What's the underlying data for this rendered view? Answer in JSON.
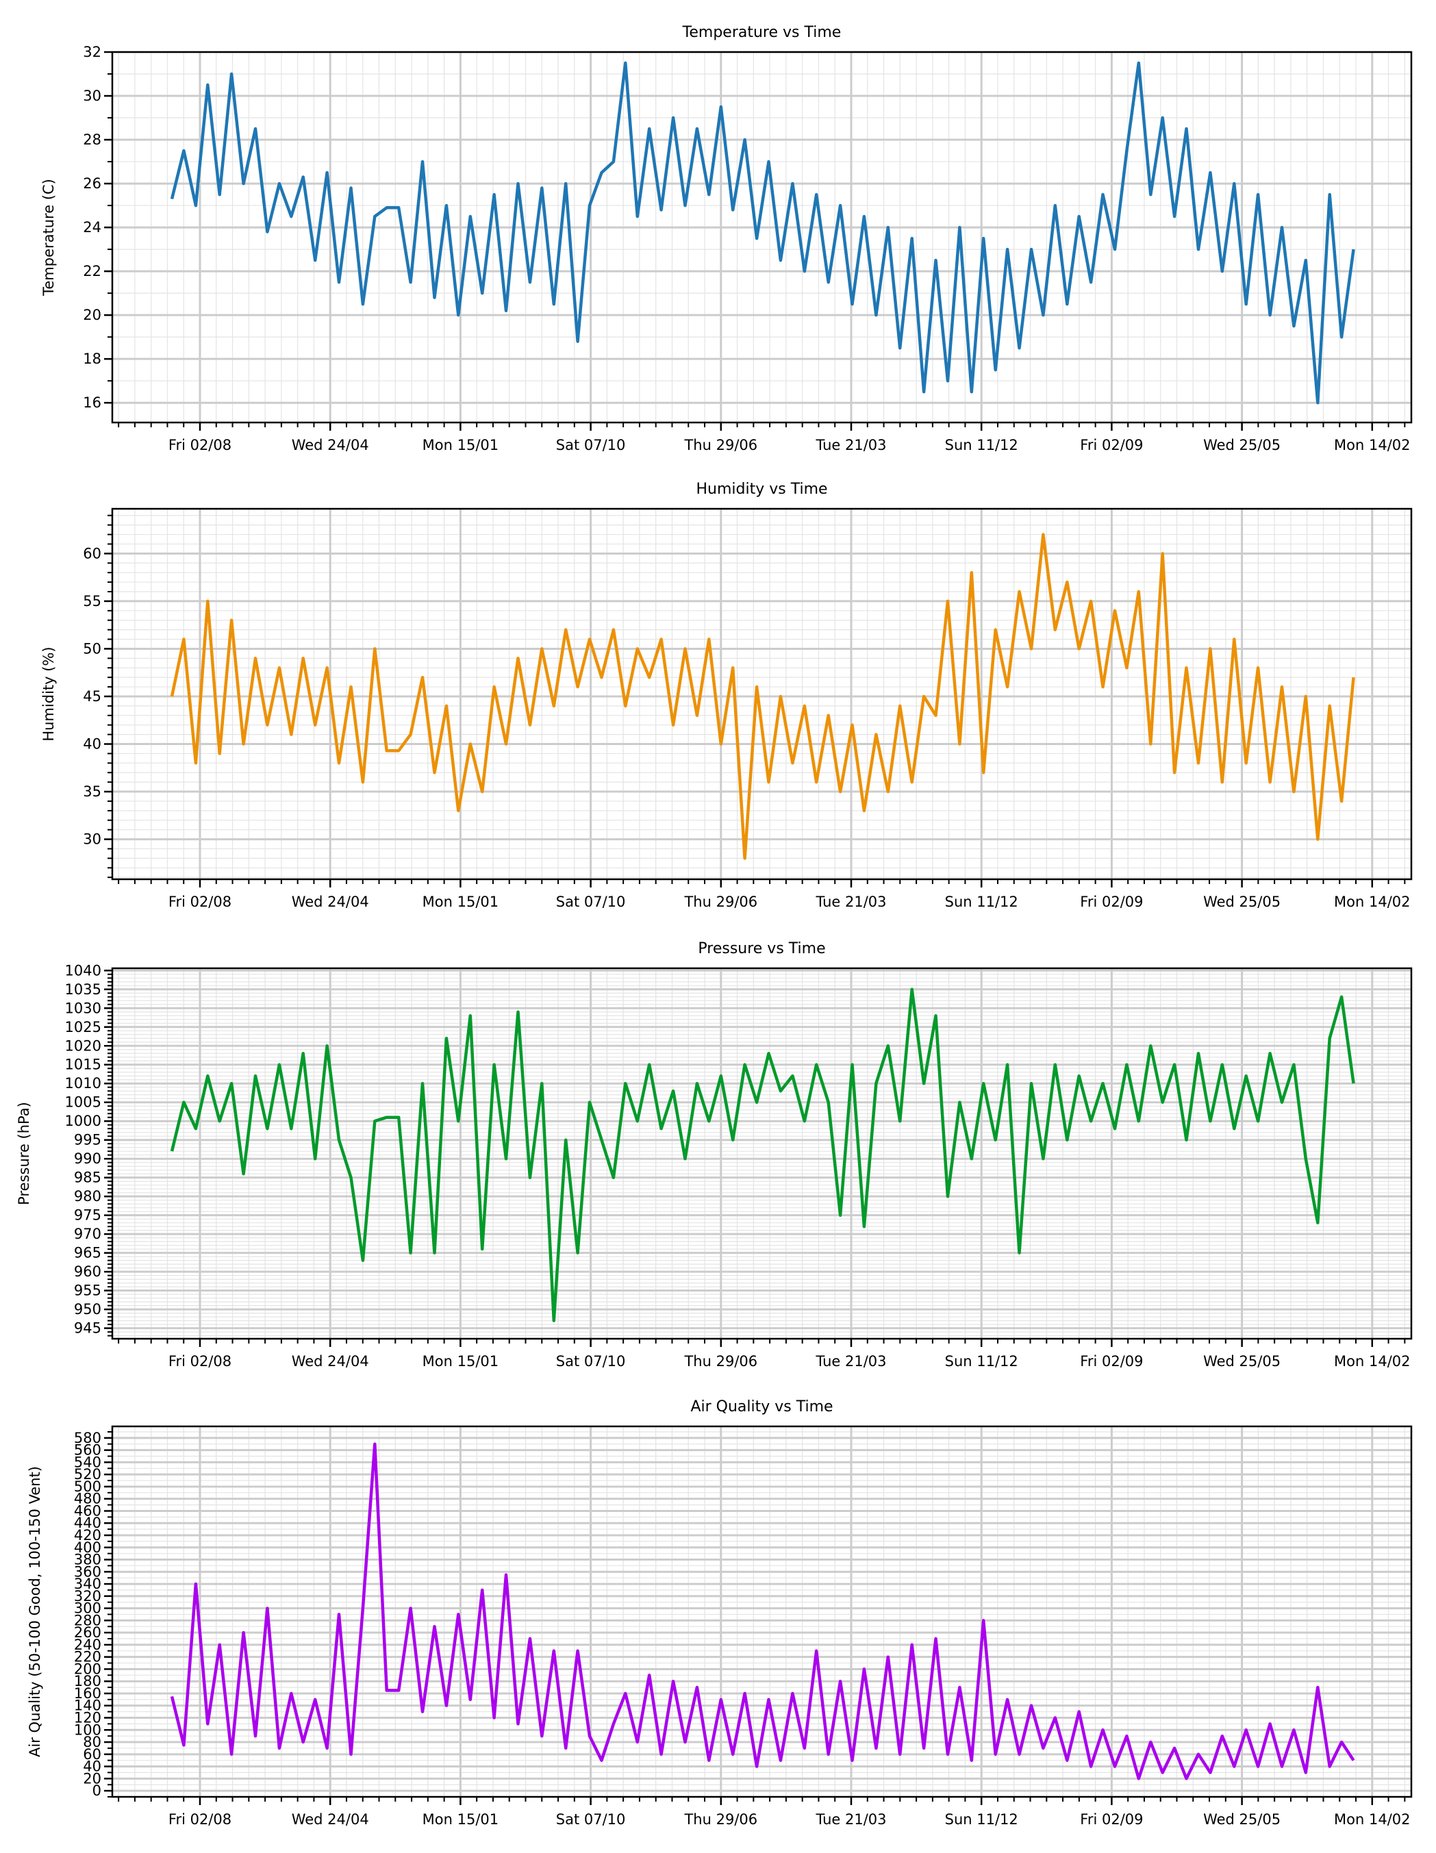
{
  "chart_data": [
    {
      "type": "line",
      "title": "Temperature vs Time",
      "ylabel": "Temperature (C)",
      "xlabel": "",
      "ylim": [
        15.1,
        32
      ],
      "yticks": [
        16,
        18,
        20,
        22,
        24,
        26,
        28,
        30,
        32
      ],
      "yminor": 1,
      "grid": true,
      "color": "#1f77b4",
      "x_tick_labels": [
        "Fri 02/08",
        "Wed 24/04",
        "Mon 15/01",
        "Sat 07/10",
        "Thu 29/06",
        "Tue 21/03",
        "Sun 11/12",
        "Fri 02/09",
        "Wed 25/05",
        "Mon 14/02"
      ],
      "values": [
        25.3,
        27.5,
        25.0,
        30.5,
        25.5,
        31.0,
        26.0,
        28.5,
        23.8,
        26.0,
        24.5,
        26.3,
        22.5,
        26.5,
        21.5,
        25.8,
        20.5,
        24.5,
        24.9,
        24.9,
        21.5,
        27.0,
        20.8,
        25.0,
        20.0,
        24.5,
        21.0,
        25.5,
        20.2,
        26.0,
        21.5,
        25.8,
        20.5,
        26.0,
        18.8,
        25.0,
        26.5,
        27.0,
        31.5,
        24.5,
        28.5,
        24.8,
        29.0,
        25.0,
        28.5,
        25.5,
        29.5,
        24.8,
        28.0,
        23.5,
        27.0,
        22.5,
        26.0,
        22.0,
        25.5,
        21.5,
        25.0,
        20.5,
        24.5,
        20.0,
        24.0,
        18.5,
        23.5,
        16.5,
        22.5,
        17.0,
        24.0,
        16.5,
        23.5,
        17.5,
        23.0,
        18.5,
        23.0,
        20.0,
        25.0,
        20.5,
        24.5,
        21.5,
        25.5,
        23.0,
        27.5,
        31.5,
        25.5,
        29.0,
        24.5,
        28.5,
        23.0,
        26.5,
        22.0,
        26.0,
        20.5,
        25.5,
        20.0,
        24.0,
        19.5,
        22.5,
        16.0,
        25.5,
        19.0,
        23.0
      ]
    },
    {
      "type": "line",
      "title": "Humidity vs Time",
      "ylabel": "Humidity (%)",
      "xlabel": "",
      "ylim": [
        25.8,
        64.7
      ],
      "yticks": [
        30,
        35,
        40,
        45,
        50,
        55,
        60
      ],
      "yminor": 1,
      "grid": true,
      "color": "#ec9106",
      "x_tick_labels": [
        "Fri 02/08",
        "Wed 24/04",
        "Mon 15/01",
        "Sat 07/10",
        "Thu 29/06",
        "Tue 21/03",
        "Sun 11/12",
        "Fri 02/09",
        "Wed 25/05",
        "Mon 14/02"
      ],
      "values": [
        45,
        51,
        38,
        55,
        39,
        53,
        40,
        49,
        42,
        48,
        41,
        49,
        42,
        48,
        38,
        46,
        36,
        50,
        39.3,
        39.3,
        41,
        47,
        37,
        44,
        33,
        40,
        35,
        46,
        40,
        49,
        42,
        50,
        44,
        52,
        46,
        51,
        47,
        52,
        44,
        50,
        47,
        51,
        42,
        50,
        43,
        51,
        40,
        48,
        28,
        46,
        36,
        45,
        38,
        44,
        36,
        43,
        35,
        42,
        33,
        41,
        35,
        44,
        36,
        45,
        43,
        55,
        40,
        58,
        37,
        52,
        46,
        56,
        50,
        62,
        52,
        57,
        50,
        55,
        46,
        54,
        48,
        56,
        40,
        60,
        37,
        48,
        38,
        50,
        36,
        51,
        38,
        48,
        36,
        46,
        35,
        45,
        30,
        44,
        34,
        47
      ]
    },
    {
      "type": "line",
      "title": "Pressure vs Time",
      "ylabel": "Pressure (hPa)",
      "xlabel": "",
      "ylim": [
        942.2,
        1040.6
      ],
      "yticks": [
        945,
        950,
        955,
        960,
        965,
        970,
        975,
        980,
        985,
        990,
        995,
        1000,
        1005,
        1010,
        1015,
        1020,
        1025,
        1030,
        1035,
        1040
      ],
      "yminor": 1,
      "grid": true,
      "color": "#029a2b",
      "x_tick_labels": [
        "Fri 02/08",
        "Wed 24/04",
        "Mon 15/01",
        "Sat 07/10",
        "Thu 29/06",
        "Tue 21/03",
        "Sun 11/12",
        "Fri 02/09",
        "Wed 25/05",
        "Mon 14/02"
      ],
      "values": [
        992,
        1005,
        998,
        1012,
        1000,
        1010,
        986,
        1012,
        998,
        1015,
        998,
        1018,
        990,
        1020,
        995,
        985,
        963,
        1000,
        1001,
        1001,
        965,
        1010,
        965,
        1022,
        1000,
        1028,
        966,
        1015,
        990,
        1029,
        985,
        1010,
        947,
        995,
        965,
        1005,
        995,
        985,
        1010,
        1000,
        1015,
        998,
        1008,
        990,
        1010,
        1000,
        1012,
        995,
        1015,
        1005,
        1018,
        1008,
        1012,
        1000,
        1015,
        1005,
        975,
        1015,
        972,
        1010,
        1020,
        1000,
        1035,
        1010,
        1028,
        980,
        1005,
        990,
        1010,
        995,
        1015,
        965,
        1010,
        990,
        1015,
        995,
        1012,
        1000,
        1010,
        998,
        1015,
        1000,
        1020,
        1005,
        1015,
        995,
        1018,
        1000,
        1015,
        998,
        1012,
        1000,
        1018,
        1005,
        1015,
        990,
        973,
        1022,
        1033,
        1010
      ]
    },
    {
      "type": "line",
      "title": "Air Quality vs Time",
      "ylabel": "Air Quality (50-100 Good, 100-150 Vent)",
      "xlabel": "",
      "ylim": [
        -10,
        599
      ],
      "yticks": [
        0,
        20,
        40,
        60,
        80,
        100,
        120,
        140,
        160,
        180,
        200,
        220,
        240,
        260,
        280,
        300,
        320,
        340,
        360,
        380,
        400,
        420,
        440,
        460,
        480,
        500,
        520,
        540,
        560,
        580
      ],
      "yminor": 10,
      "grid": true,
      "color": "#aa00ee",
      "x_tick_labels": [
        "Fri 02/08",
        "Wed 24/04",
        "Mon 15/01",
        "Sat 07/10",
        "Thu 29/06",
        "Tue 21/03",
        "Sun 11/12",
        "Fri 02/09",
        "Wed 25/05",
        "Mon 14/02"
      ],
      "values": [
        155,
        75,
        340,
        110,
        240,
        60,
        260,
        90,
        300,
        70,
        160,
        80,
        150,
        70,
        290,
        60,
        300,
        570,
        165,
        165,
        300,
        130,
        270,
        140,
        290,
        150,
        330,
        120,
        355,
        110,
        250,
        90,
        230,
        70,
        230,
        90,
        50,
        110,
        160,
        80,
        190,
        60,
        180,
        80,
        170,
        50,
        150,
        60,
        160,
        40,
        150,
        50,
        160,
        70,
        230,
        60,
        180,
        50,
        200,
        70,
        220,
        60,
        240,
        70,
        250,
        60,
        170,
        50,
        280,
        60,
        150,
        60,
        140,
        70,
        120,
        50,
        130,
        40,
        100,
        40,
        90,
        20,
        80,
        30,
        70,
        20,
        60,
        30,
        90,
        40,
        100,
        40,
        110,
        40,
        100,
        30,
        170,
        40,
        80,
        50
      ]
    }
  ]
}
